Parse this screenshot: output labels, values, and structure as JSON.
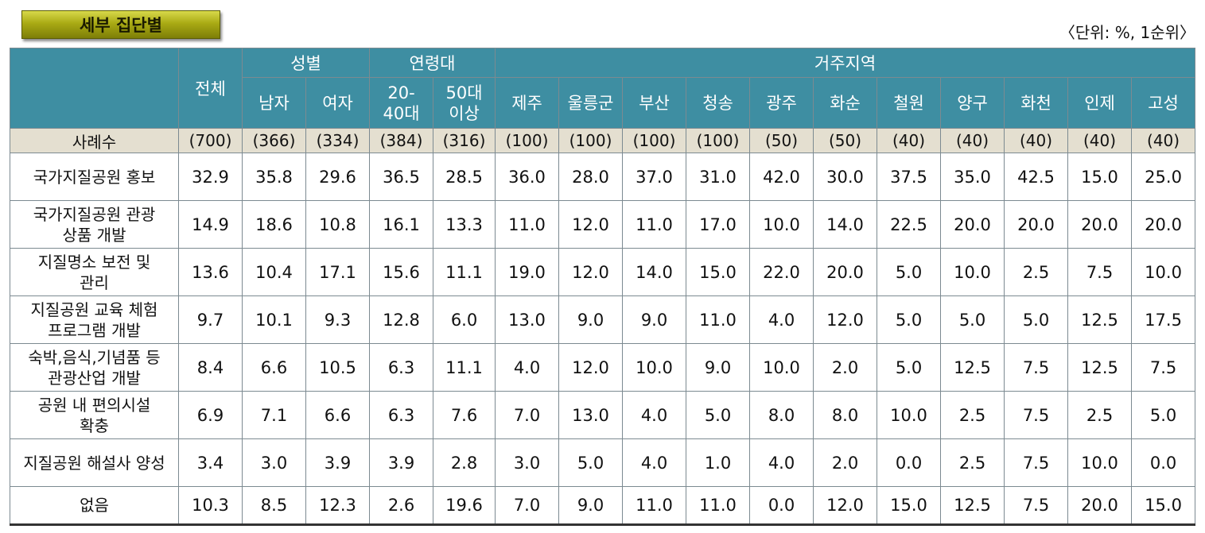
{
  "badge": "세부 집단별",
  "unit": "〈단위: %, 1순위〉",
  "header": {
    "total": "전체",
    "gender": "성별",
    "age": "연령대",
    "region": "거주지역",
    "sub": [
      "남자",
      "여자",
      "20-\n40대",
      "50대\n이상",
      "제주",
      "울릉군",
      "부산",
      "청송",
      "광주",
      "화순",
      "철원",
      "양구",
      "화천",
      "인제",
      "고성"
    ]
  },
  "count_row": {
    "label": "사례수",
    "values": [
      "(700)",
      "(366)",
      "(334)",
      "(384)",
      "(316)",
      "(100)",
      "(100)",
      "(100)",
      "(100)",
      "(50)",
      "(50)",
      "(40)",
      "(40)",
      "(40)",
      "(40)",
      "(40)"
    ]
  },
  "rows": [
    {
      "label": "국가지질공원 홍보",
      "values": [
        "32.9",
        "35.8",
        "29.6",
        "36.5",
        "28.5",
        "36.0",
        "28.0",
        "37.0",
        "31.0",
        "42.0",
        "30.0",
        "37.5",
        "35.0",
        "42.5",
        "15.0",
        "25.0"
      ]
    },
    {
      "label": "국가지질공원 관광\n상품 개발",
      "values": [
        "14.9",
        "18.6",
        "10.8",
        "16.1",
        "13.3",
        "11.0",
        "12.0",
        "11.0",
        "17.0",
        "10.0",
        "14.0",
        "22.5",
        "20.0",
        "20.0",
        "20.0",
        "20.0"
      ]
    },
    {
      "label": "지질명소 보전 및\n관리",
      "values": [
        "13.6",
        "10.4",
        "17.1",
        "15.6",
        "11.1",
        "19.0",
        "12.0",
        "14.0",
        "15.0",
        "22.0",
        "20.0",
        "5.0",
        "10.0",
        "2.5",
        "7.5",
        "10.0"
      ]
    },
    {
      "label": "지질공원 교육 체험\n프로그램 개발",
      "values": [
        "9.7",
        "10.1",
        "9.3",
        "12.8",
        "6.0",
        "13.0",
        "9.0",
        "9.0",
        "11.0",
        "4.0",
        "12.0",
        "5.0",
        "5.0",
        "5.0",
        "12.5",
        "17.5"
      ]
    },
    {
      "label": "숙박,음식,기념품 등\n관광산업 개발",
      "values": [
        "8.4",
        "6.6",
        "10.5",
        "6.3",
        "11.1",
        "4.0",
        "12.0",
        "10.0",
        "9.0",
        "10.0",
        "2.0",
        "5.0",
        "12.5",
        "7.5",
        "12.5",
        "7.5"
      ]
    },
    {
      "label": "공원 내 편의시설\n확충",
      "values": [
        "6.9",
        "7.1",
        "6.6",
        "6.3",
        "7.6",
        "7.0",
        "13.0",
        "4.0",
        "5.0",
        "8.0",
        "8.0",
        "10.0",
        "2.5",
        "7.5",
        "2.5",
        "5.0"
      ]
    },
    {
      "label": "지질공원 해설사 양성",
      "values": [
        "3.4",
        "3.0",
        "3.9",
        "3.9",
        "2.8",
        "3.0",
        "5.0",
        "4.0",
        "1.0",
        "4.0",
        "2.0",
        "0.0",
        "2.5",
        "7.5",
        "10.0",
        "0.0"
      ]
    },
    {
      "label": "없음",
      "values": [
        "10.3",
        "8.5",
        "12.3",
        "2.6",
        "19.6",
        "7.0",
        "9.0",
        "11.0",
        "11.0",
        "0.0",
        "12.0",
        "15.0",
        "12.5",
        "7.5",
        "20.0",
        "15.0"
      ]
    }
  ]
}
